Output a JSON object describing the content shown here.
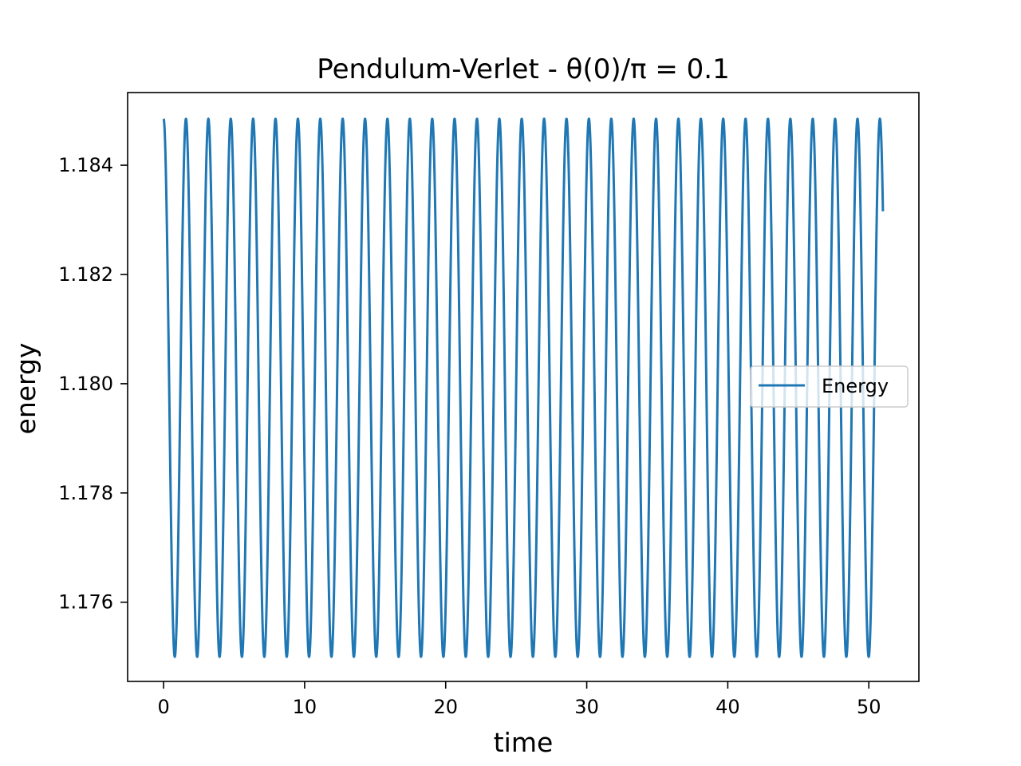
{
  "chart_data": {
    "type": "line",
    "title": "Pendulum-Verlet - θ(0)/π = 0.1",
    "xlabel": "time",
    "ylabel": "energy",
    "xlim": [
      -2.55,
      53.55
    ],
    "ylim": [
      1.17455,
      1.18533
    ],
    "xticks": [
      0,
      10,
      20,
      30,
      40,
      50
    ],
    "xtick_labels": [
      "0",
      "10",
      "20",
      "30",
      "40",
      "50"
    ],
    "yticks": [
      1.176,
      1.178,
      1.18,
      1.182,
      1.184
    ],
    "ytick_labels": [
      "1.176",
      "1.178",
      "1.180",
      "1.182",
      "1.184"
    ],
    "grid": false,
    "legend_position": "center-right",
    "series": [
      {
        "name": "Energy",
        "color": "#1f77b4",
        "model": {
          "kind": "oscillation",
          "t_start": 0,
          "t_end": 51,
          "period": 1.587,
          "max": 1.18485,
          "min": 1.175
        }
      }
    ]
  }
}
